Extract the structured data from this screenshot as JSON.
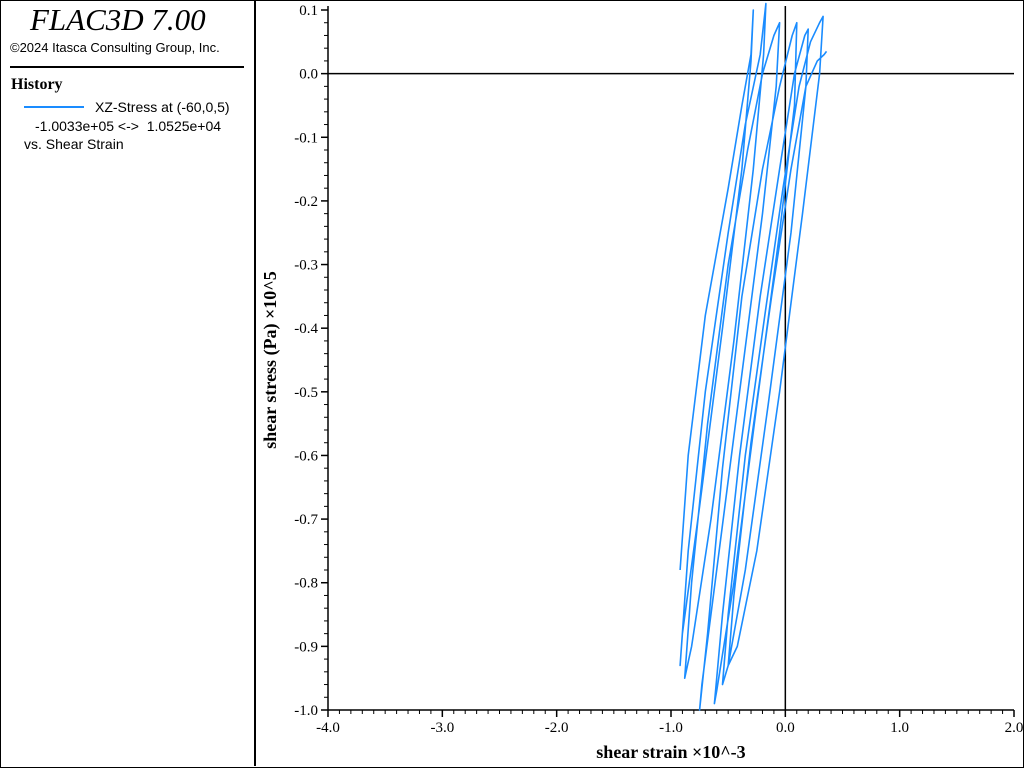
{
  "sidebar": {
    "app_title": "FLAC3D 7.00",
    "copyright": "©2024 Itasca Consulting Group, Inc.",
    "section_title": "History",
    "legend": {
      "series_label": "XZ-Stress at (-60,0,5)",
      "range_label": "-1.0033e+05 <->  1.0525e+04",
      "versus_label": "vs. Shear Strain",
      "color": "#1a8cff"
    }
  },
  "chart_data": {
    "type": "line",
    "xlabel": "shear strain ×10^-3",
    "ylabel": "shear stress (Pa) ×10^5",
    "xlim": [
      -4.0,
      2.0
    ],
    "ylim": [
      -1.0,
      0.1
    ],
    "xticks": [
      "-4.0",
      "-3.0",
      "-2.0",
      "-1.0",
      "0.0",
      "1.0",
      "2.0"
    ],
    "yticks": [
      "0.1",
      "0.0",
      "-0.1",
      "-0.2",
      "-0.3",
      "-0.4",
      "-0.5",
      "-0.6",
      "-0.7",
      "-0.8",
      "-0.9",
      "-1.0"
    ],
    "series": [
      {
        "name": "XZ-Stress at (-60,0,5)",
        "color": "#1a8cff",
        "x": [
          -0.92,
          -0.85,
          -0.7,
          -0.5,
          -0.38,
          -0.3,
          -0.28,
          -0.3,
          -0.38,
          -0.55,
          -0.75,
          -0.9,
          -0.92,
          -0.85,
          -0.7,
          -0.5,
          -0.35,
          -0.22,
          -0.17,
          -0.19,
          -0.28,
          -0.45,
          -0.65,
          -0.82,
          -0.88,
          -0.82,
          -0.68,
          -0.5,
          -0.33,
          -0.2,
          -0.1,
          -0.05,
          -0.08,
          -0.2,
          -0.4,
          -0.6,
          -0.73,
          -0.75,
          -0.68,
          -0.55,
          -0.38,
          -0.2,
          -0.05,
          0.06,
          0.1,
          0.08,
          -0.05,
          -0.25,
          -0.45,
          -0.6,
          -0.62,
          -0.55,
          -0.4,
          -0.22,
          -0.05,
          0.08,
          0.17,
          0.2,
          0.18,
          0.05,
          -0.15,
          -0.35,
          -0.5,
          -0.55,
          -0.5,
          -0.35,
          -0.18,
          -0.02,
          0.12,
          0.22,
          0.3,
          0.33,
          0.3,
          0.15,
          -0.05,
          -0.25,
          -0.42,
          -0.5,
          -0.45,
          -0.3,
          -0.12,
          0.05,
          0.18,
          0.28,
          0.34,
          0.36
        ],
        "y": [
          -0.78,
          -0.6,
          -0.38,
          -0.18,
          -0.05,
          0.03,
          0.1,
          0.02,
          -0.15,
          -0.4,
          -0.68,
          -0.88,
          -0.93,
          -0.75,
          -0.5,
          -0.25,
          -0.08,
          0.03,
          0.11,
          0.03,
          -0.15,
          -0.42,
          -0.7,
          -0.9,
          -0.95,
          -0.8,
          -0.55,
          -0.3,
          -0.12,
          0.0,
          0.06,
          0.08,
          -0.02,
          -0.22,
          -0.5,
          -0.78,
          -0.96,
          -1.0,
          -0.88,
          -0.62,
          -0.35,
          -0.15,
          -0.02,
          0.06,
          0.08,
          -0.05,
          -0.25,
          -0.52,
          -0.8,
          -0.97,
          -0.99,
          -0.85,
          -0.6,
          -0.35,
          -0.15,
          0.0,
          0.06,
          0.07,
          -0.02,
          -0.25,
          -0.52,
          -0.78,
          -0.93,
          -0.96,
          -0.85,
          -0.6,
          -0.38,
          -0.18,
          -0.02,
          0.05,
          0.08,
          0.09,
          0.0,
          -0.22,
          -0.5,
          -0.75,
          -0.9,
          -0.93,
          -0.82,
          -0.58,
          -0.35,
          -0.15,
          -0.02,
          0.02,
          0.03,
          0.035
        ]
      }
    ]
  }
}
